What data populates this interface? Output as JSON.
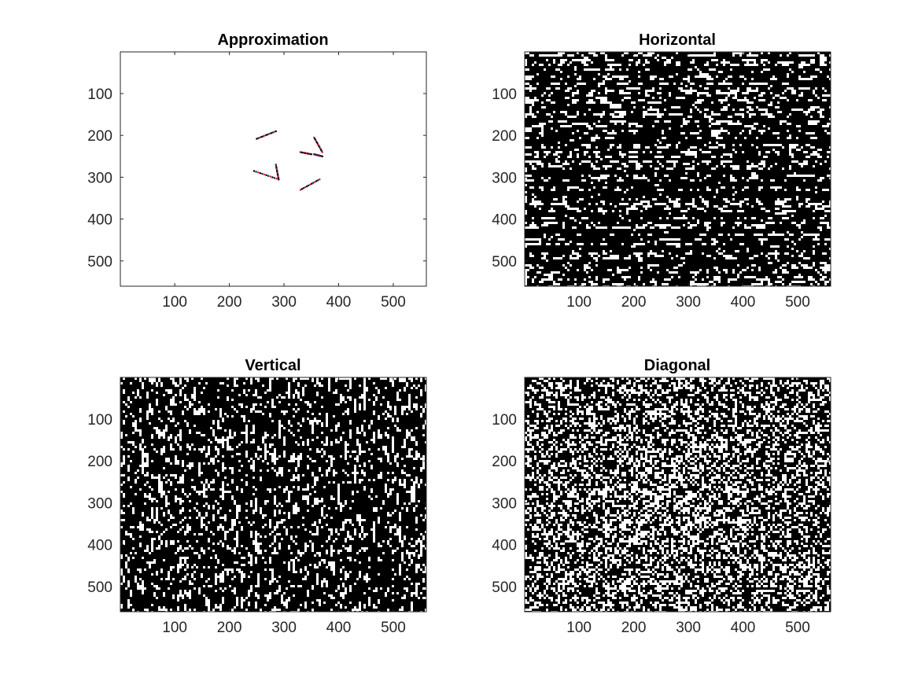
{
  "chart_data": [
    {
      "type": "heatmap",
      "title": "Approximation",
      "xlabel": "",
      "ylabel": "",
      "xlim": [
        0.5,
        560.5
      ],
      "ylim": [
        0.5,
        560.5
      ],
      "y_direction": "reverse",
      "x_ticks": [
        100,
        200,
        300,
        400,
        500
      ],
      "y_ticks": [
        100,
        200,
        300,
        400,
        500
      ],
      "x_tick_labels": [
        "100",
        "200",
        "300",
        "400",
        "500"
      ],
      "y_tick_labels": [
        "100",
        "200",
        "300",
        "400",
        "500"
      ],
      "texture": "mostly white with sparse dark edge fragments",
      "density": 0.0,
      "background": "#ffffff",
      "speckle_colors": [
        "#000000",
        "#1a1a5a",
        "#d02020"
      ],
      "features": [
        {
          "kind": "segment",
          "x": [
            250,
            285
          ],
          "y": [
            208,
            190
          ]
        },
        {
          "kind": "segment",
          "x": [
            330,
            350
          ],
          "y": [
            240,
            245
          ]
        },
        {
          "kind": "segment",
          "x": [
            355,
            370
          ],
          "y": [
            205,
            240
          ]
        },
        {
          "kind": "segment",
          "x": [
            245,
            290
          ],
          "y": [
            285,
            305
          ]
        },
        {
          "kind": "segment",
          "x": [
            285,
            290
          ],
          "y": [
            270,
            305
          ]
        },
        {
          "kind": "segment",
          "x": [
            330,
            365
          ],
          "y": [
            330,
            305
          ]
        },
        {
          "kind": "segment",
          "x": [
            355,
            370
          ],
          "y": [
            245,
            250
          ]
        }
      ],
      "grid": false
    },
    {
      "type": "heatmap",
      "title": "Horizontal",
      "xlabel": "",
      "ylabel": "",
      "xlim": [
        0.5,
        560.5
      ],
      "ylim": [
        0.5,
        560.5
      ],
      "y_direction": "reverse",
      "x_ticks": [
        100,
        200,
        300,
        400,
        500
      ],
      "y_ticks": [
        100,
        200,
        300,
        400,
        500
      ],
      "x_tick_labels": [
        "100",
        "200",
        "300",
        "400",
        "500"
      ],
      "y_tick_labels": [
        "100",
        "200",
        "300",
        "400",
        "500"
      ],
      "texture": "dense black/white noise with horizontal streaks",
      "density": 0.55,
      "background": "#ffffff",
      "speckle_colors": [
        "#000000",
        "#ffffff"
      ],
      "grid": false
    },
    {
      "type": "heatmap",
      "title": "Vertical",
      "xlabel": "",
      "ylabel": "",
      "xlim": [
        0.5,
        560.5
      ],
      "ylim": [
        0.5,
        560.5
      ],
      "y_direction": "reverse",
      "x_ticks": [
        100,
        200,
        300,
        400,
        500
      ],
      "y_ticks": [
        100,
        200,
        300,
        400,
        500
      ],
      "x_tick_labels": [
        "100",
        "200",
        "300",
        "400",
        "500"
      ],
      "y_tick_labels": [
        "100",
        "200",
        "300",
        "400",
        "500"
      ],
      "texture": "dense black/white noise with vertical streaks",
      "density": 0.5,
      "background": "#ffffff",
      "speckle_colors": [
        "#000000",
        "#ffffff"
      ],
      "grid": false
    },
    {
      "type": "heatmap",
      "title": "Diagonal",
      "xlabel": "",
      "ylabel": "",
      "xlim": [
        0.5,
        560.5
      ],
      "ylim": [
        0.5,
        560.5
      ],
      "y_direction": "reverse",
      "x_ticks": [
        100,
        200,
        300,
        400,
        500
      ],
      "y_ticks": [
        100,
        200,
        300,
        400,
        500
      ],
      "x_tick_labels": [
        "100",
        "200",
        "300",
        "400",
        "500"
      ],
      "y_tick_labels": [
        "100",
        "200",
        "300",
        "400",
        "500"
      ],
      "texture": "dense dark noise with a faint lighter region near the center",
      "density": 0.62,
      "background": "#ffffff",
      "speckle_colors": [
        "#000000",
        "#ffffff"
      ],
      "grid": false
    }
  ]
}
